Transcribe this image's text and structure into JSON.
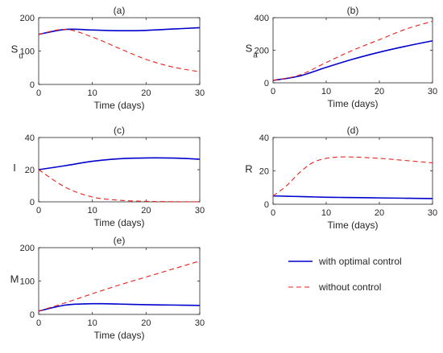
{
  "chart_data": [
    {
      "type": "line",
      "title": "(a)",
      "xlabel": "Time (days)",
      "ylabel": "S",
      "ylabel_sub": "u",
      "xlim": [
        0,
        30
      ],
      "ylim": [
        0,
        200
      ],
      "xticks": [
        0,
        10,
        20,
        30
      ],
      "yticks": [
        0,
        100,
        200
      ],
      "x": [
        0,
        5,
        10,
        15,
        20,
        25,
        30
      ],
      "series": [
        {
          "name": "with optimal control",
          "values": [
            150,
            165,
            163,
            161,
            162,
            166,
            170
          ]
        },
        {
          "name": "without control",
          "values": [
            150,
            165,
            142,
            108,
            75,
            52,
            38
          ]
        }
      ]
    },
    {
      "type": "line",
      "title": "(b)",
      "xlabel": "Time (days)",
      "ylabel": "S",
      "ylabel_sub": "a",
      "xlim": [
        0,
        30
      ],
      "ylim": [
        0,
        400
      ],
      "xticks": [
        0,
        10,
        20,
        30
      ],
      "yticks": [
        0,
        200,
        400
      ],
      "x": [
        0,
        5,
        10,
        15,
        20,
        25,
        30
      ],
      "series": [
        {
          "name": "with optimal control",
          "values": [
            15,
            42,
            95,
            145,
            188,
            225,
            258
          ]
        },
        {
          "name": "without control",
          "values": [
            15,
            48,
            125,
            200,
            265,
            330,
            378
          ]
        }
      ]
    },
    {
      "type": "line",
      "title": "(c)",
      "xlabel": "Time (days)",
      "ylabel": "I",
      "xlim": [
        0,
        30
      ],
      "ylim": [
        0,
        40
      ],
      "xticks": [
        0,
        10,
        20,
        30
      ],
      "yticks": [
        0,
        20,
        40
      ],
      "x": [
        0,
        5,
        10,
        15,
        20,
        25,
        30
      ],
      "series": [
        {
          "name": "with optimal control",
          "values": [
            20,
            22.5,
            25.2,
            26.8,
            27.3,
            27.2,
            26.5
          ]
        },
        {
          "name": "without control",
          "values": [
            20,
            9,
            3,
            1,
            0.3,
            0.1,
            0
          ]
        }
      ]
    },
    {
      "type": "line",
      "title": "(d)",
      "xlabel": "Time (days)",
      "ylabel": "R",
      "xlim": [
        0,
        30
      ],
      "ylim": [
        0,
        40
      ],
      "xticks": [
        0,
        10,
        20,
        30
      ],
      "yticks": [
        0,
        20,
        40
      ],
      "x": [
        0,
        2.5,
        5,
        7.5,
        10,
        12.5,
        15,
        20,
        25,
        30
      ],
      "series": [
        {
          "name": "with optimal control",
          "values": [
            5,
            4.8,
            4.6,
            4.4,
            4.2,
            4.1,
            4.0,
            3.8,
            3.6,
            3.4
          ]
        },
        {
          "name": "without control",
          "values": [
            5,
            11,
            19,
            25,
            27.5,
            28.3,
            28.3,
            27.5,
            26.2,
            24.8
          ]
        }
      ]
    },
    {
      "type": "line",
      "title": "(e)",
      "xlabel": "Time (days)",
      "ylabel": "M",
      "xlim": [
        0,
        30
      ],
      "ylim": [
        0,
        200
      ],
      "xticks": [
        0,
        10,
        20,
        30
      ],
      "yticks": [
        0,
        100,
        200
      ],
      "x": [
        0,
        5,
        10,
        15,
        20,
        25,
        30
      ],
      "series": [
        {
          "name": "with optimal control",
          "values": [
            10,
            28,
            32,
            31,
            29,
            28,
            27
          ]
        },
        {
          "name": "without control",
          "values": [
            10,
            35,
            62,
            88,
            112,
            136,
            160
          ]
        }
      ]
    }
  ],
  "legend": [
    {
      "label": "with optimal control",
      "color": "#0000cc",
      "dash": "solid"
    },
    {
      "label": "without control",
      "color": "#e8231d",
      "dash": "dashed"
    }
  ],
  "colors": {
    "optimal": "#0000cc",
    "uncontrolled": "#e8231d",
    "axis": "#262626"
  }
}
